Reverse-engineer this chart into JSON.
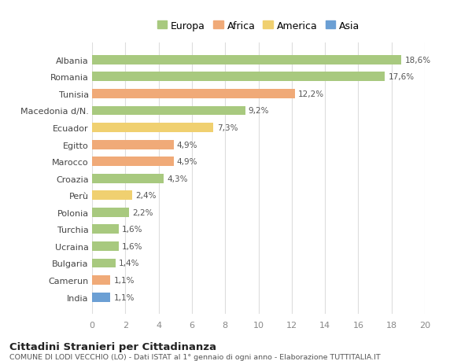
{
  "categories": [
    "Albania",
    "Romania",
    "Tunisia",
    "Macedonia d/N.",
    "Ecuador",
    "Egitto",
    "Marocco",
    "Croazia",
    "Perù",
    "Polonia",
    "Turchia",
    "Ucraina",
    "Bulgaria",
    "Camerun",
    "India"
  ],
  "values": [
    18.6,
    17.6,
    12.2,
    9.2,
    7.3,
    4.9,
    4.9,
    4.3,
    2.4,
    2.2,
    1.6,
    1.6,
    1.4,
    1.1,
    1.1
  ],
  "bar_colors": [
    "#a8c97f",
    "#a8c97f",
    "#f0aa78",
    "#a8c97f",
    "#f0d070",
    "#f0aa78",
    "#f0aa78",
    "#a8c97f",
    "#f0d070",
    "#a8c97f",
    "#a8c97f",
    "#a8c97f",
    "#a8c97f",
    "#f0aa78",
    "#6b9fd4"
  ],
  "labels": [
    "18,6%",
    "17,6%",
    "12,2%",
    "9,2%",
    "7,3%",
    "4,9%",
    "4,9%",
    "4,3%",
    "2,4%",
    "2,2%",
    "1,6%",
    "1,6%",
    "1,4%",
    "1,1%",
    "1,1%"
  ],
  "legend_labels": [
    "Europa",
    "Africa",
    "America",
    "Asia"
  ],
  "legend_colors": [
    "#a8c97f",
    "#f0aa78",
    "#f0d070",
    "#6b9fd4"
  ],
  "xlim": [
    0,
    20
  ],
  "xticks": [
    0,
    2,
    4,
    6,
    8,
    10,
    12,
    14,
    16,
    18,
    20
  ],
  "title": "Cittadini Stranieri per Cittadinanza",
  "subtitle": "COMUNE DI LODI VECCHIO (LO) - Dati ISTAT al 1° gennaio di ogni anno - Elaborazione TUTTITALIA.IT",
  "background_color": "#ffffff",
  "grid_color": "#dddddd",
  "bar_height": 0.55
}
